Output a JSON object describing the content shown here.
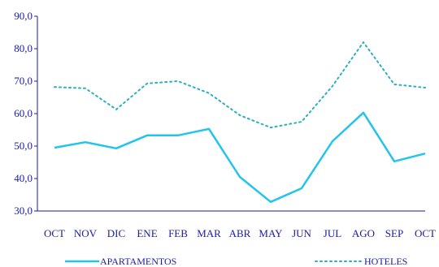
{
  "chart_data": {
    "type": "line",
    "title": "",
    "xlabel": "",
    "ylabel": "",
    "categories": [
      "OCT",
      "NOV",
      "DIC",
      "ENE",
      "FEB",
      "MAR",
      "ABR",
      "MAY",
      "JUN",
      "JUL",
      "AGO",
      "SEP",
      "OCT"
    ],
    "ylim": [
      30,
      90
    ],
    "yticks": [
      "30,0",
      "40,0",
      "50,0",
      "60,0",
      "70,0",
      "80,0",
      "90,0"
    ],
    "grid": false,
    "legend": "bottom",
    "series": [
      {
        "name": "APARTAMENTOS",
        "style": "solid",
        "color": "#22c4ee",
        "values": [
          49.5,
          51.2,
          49.3,
          53.3,
          53.3,
          55.3,
          40.5,
          32.8,
          37.0,
          51.5,
          60.3,
          45.3,
          47.7
        ]
      },
      {
        "name": "HOTELES",
        "style": "dotted",
        "color": "#2ab0c0",
        "values": [
          68.2,
          67.8,
          61.3,
          69.3,
          70.0,
          66.3,
          59.5,
          55.7,
          57.5,
          68.5,
          82.0,
          69.0,
          68.0
        ]
      }
    ],
    "colors": {
      "axis": "#1a1aa8",
      "text": "#1a1aa8"
    }
  }
}
